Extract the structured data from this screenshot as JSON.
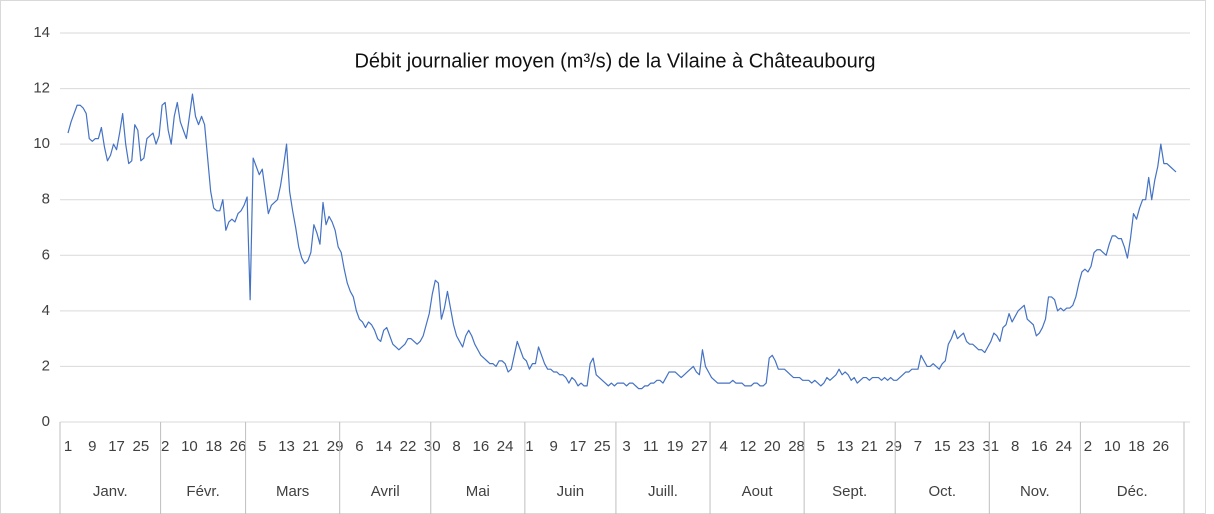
{
  "chart_data": {
    "type": "line",
    "title": "Débit journalier moyen (m³/s) de la Vilaine à Châteaubourg",
    "color": "#4472c4",
    "ylim": [
      0,
      14
    ],
    "yticks": [
      0,
      2,
      4,
      6,
      8,
      10,
      12,
      14
    ],
    "grid": true,
    "categories": [
      "1",
      null,
      null,
      null,
      null,
      null,
      null,
      null,
      "9",
      null,
      null,
      null,
      null,
      null,
      null,
      null,
      "17",
      null,
      null,
      null,
      null,
      null,
      null,
      null,
      "25",
      null,
      null,
      null,
      null,
      null,
      null,
      null,
      "2",
      null,
      null,
      null,
      null,
      null,
      null,
      null,
      "10",
      null,
      null,
      null,
      null,
      null,
      null,
      null,
      "18",
      null,
      null,
      null,
      null,
      null,
      null,
      null,
      "26",
      null,
      null,
      null,
      null,
      null,
      null,
      null,
      "5",
      null,
      null,
      null,
      null,
      null,
      null,
      null,
      "13",
      null,
      null,
      null,
      null,
      null,
      null,
      null,
      "21",
      null,
      null,
      null,
      null,
      null,
      null,
      null,
      "29",
      null,
      null,
      null,
      null,
      null,
      null,
      null,
      "6",
      null,
      null,
      null,
      null,
      null,
      null,
      null,
      "14",
      null,
      null,
      null,
      null,
      null,
      null,
      null,
      "22",
      null,
      null,
      null,
      null,
      null,
      null,
      null,
      "30",
      null,
      null,
      null,
      null,
      null,
      null,
      null,
      "8",
      null,
      null,
      null,
      null,
      null,
      null,
      null,
      "16",
      null,
      null,
      null,
      null,
      null,
      null,
      null,
      "24",
      null,
      null,
      null,
      null,
      null,
      null,
      null,
      "1",
      null,
      null,
      null,
      null,
      null,
      null,
      null,
      "9",
      null,
      null,
      null,
      null,
      null,
      null,
      null,
      "17",
      null,
      null,
      null,
      null,
      null,
      null,
      null,
      "25",
      null,
      null,
      null,
      null,
      null,
      null,
      null,
      "3",
      null,
      null,
      null,
      null,
      null,
      null,
      null,
      "11",
      null,
      null,
      null,
      null,
      null,
      null,
      null,
      "19",
      null,
      null,
      null,
      null,
      null,
      null,
      null,
      "27",
      null,
      null,
      null,
      null,
      null,
      null,
      null,
      "4",
      null,
      null,
      null,
      null,
      null,
      null,
      null,
      "12",
      null,
      null,
      null,
      null,
      null,
      null,
      null,
      "20",
      null,
      null,
      null,
      null,
      null,
      null,
      null,
      "28",
      null,
      null,
      null,
      null,
      null,
      null,
      null,
      "5",
      null,
      null,
      null,
      null,
      null,
      null,
      null,
      "13",
      null,
      null,
      null,
      null,
      null,
      null,
      null,
      "21",
      null,
      null,
      null,
      null,
      null,
      null,
      null,
      "29",
      null,
      null,
      null,
      null,
      null,
      null,
      null,
      "7",
      null,
      null,
      null,
      null,
      null,
      null,
      null,
      "15",
      null,
      null,
      null,
      null,
      null,
      null,
      null,
      "23",
      null,
      null,
      null,
      null,
      null,
      null,
      null,
      "31",
      null,
      null,
      null,
      null,
      null,
      null,
      null,
      "8",
      null,
      null,
      null,
      null,
      null,
      null,
      null,
      "16",
      null,
      null,
      null,
      null,
      null,
      null,
      null,
      "24",
      null,
      null,
      null,
      null,
      null,
      null,
      null,
      "2",
      null,
      null,
      null,
      null,
      null,
      null,
      null,
      "10",
      null,
      null,
      null,
      null,
      null,
      null,
      null,
      "18",
      null,
      null,
      null,
      null,
      null,
      null,
      null,
      "26",
      null,
      null,
      null,
      null,
      null
    ],
    "months": [
      "Janv.",
      null,
      null,
      null,
      null,
      null,
      null,
      null,
      null,
      null,
      null,
      null,
      null,
      null,
      null,
      null,
      null,
      null,
      null,
      null,
      null,
      null,
      null,
      null,
      null,
      null,
      null,
      null,
      null,
      null,
      null,
      "Févr.",
      null,
      null,
      null,
      null,
      null,
      null,
      null,
      null,
      null,
      null,
      null,
      null,
      null,
      null,
      null,
      null,
      null,
      null,
      null,
      null,
      null,
      null,
      null,
      null,
      null,
      null,
      null,
      "Mars",
      null,
      null,
      null,
      null,
      null,
      null,
      null,
      null,
      null,
      null,
      null,
      null,
      null,
      null,
      null,
      null,
      null,
      null,
      null,
      null,
      null,
      null,
      null,
      null,
      null,
      null,
      null,
      null,
      null,
      null,
      "Avril",
      null,
      null,
      null,
      null,
      null,
      null,
      null,
      null,
      null,
      null,
      null,
      null,
      null,
      null,
      null,
      null,
      null,
      null,
      null,
      null,
      null,
      null,
      null,
      null,
      null,
      null,
      null,
      null,
      null,
      "Mai",
      null,
      null,
      null,
      null,
      null,
      null,
      null,
      null,
      null,
      null,
      null,
      null,
      null,
      null,
      null,
      null,
      null,
      null,
      null,
      null,
      null,
      null,
      null,
      null,
      null,
      null,
      null,
      null,
      null,
      null,
      "Juin",
      null,
      null,
      null,
      null,
      null,
      null,
      null,
      null,
      null,
      null,
      null,
      null,
      null,
      null,
      null,
      null,
      null,
      null,
      null,
      null,
      null,
      null,
      null,
      null,
      null,
      null,
      null,
      null,
      null,
      "Juill.",
      null,
      null,
      null,
      null,
      null,
      null,
      null,
      null,
      null,
      null,
      null,
      null,
      null,
      null,
      null,
      null,
      null,
      null,
      null,
      null,
      null,
      null,
      null,
      null,
      null,
      null,
      null,
      null,
      null,
      null,
      "Aout",
      null,
      null,
      null,
      null,
      null,
      null,
      null,
      null,
      null,
      null,
      null,
      null,
      null,
      null,
      null,
      null,
      null,
      null,
      null,
      null,
      null,
      null,
      null,
      null,
      null,
      null,
      null,
      null,
      null,
      null,
      "Sept.",
      null,
      null,
      null,
      null,
      null,
      null,
      null,
      null,
      null,
      null,
      null,
      null,
      null,
      null,
      null,
      null,
      null,
      null,
      null,
      null,
      null,
      null,
      null,
      null,
      null,
      null,
      null,
      null,
      null,
      "Oct.",
      null,
      null,
      null,
      null,
      null,
      null,
      null,
      null,
      null,
      null,
      null,
      null,
      null,
      null,
      null,
      null,
      null,
      null,
      null,
      null,
      null,
      null,
      null,
      null,
      null,
      null,
      null,
      null,
      null,
      null,
      "Nov.",
      null,
      null,
      null,
      null,
      null,
      null,
      null,
      null,
      null,
      null,
      null,
      null,
      null,
      null,
      null,
      null,
      null,
      null,
      null,
      null,
      null,
      null,
      null,
      null,
      null,
      null,
      null,
      null,
      null,
      "Déc.",
      null,
      null,
      null,
      null,
      null,
      null,
      null,
      null,
      null,
      null,
      null,
      null,
      null,
      null,
      null,
      null,
      null,
      null,
      null,
      null,
      null,
      null,
      null,
      null,
      null,
      null,
      null,
      null,
      null,
      null
    ],
    "values": [
      10.4,
      10.8,
      11.1,
      11.4,
      11.4,
      11.3,
      11.1,
      10.2,
      10.1,
      10.2,
      10.2,
      10.6,
      9.9,
      9.4,
      9.6,
      10.0,
      9.8,
      10.4,
      11.1,
      10.0,
      9.3,
      9.4,
      10.7,
      10.5,
      9.4,
      9.5,
      10.2,
      10.3,
      10.4,
      10.0,
      10.3,
      11.4,
      11.5,
      10.5,
      10.0,
      11.0,
      11.5,
      10.8,
      10.5,
      10.2,
      11.0,
      11.8,
      11.0,
      10.7,
      11.0,
      10.7,
      9.5,
      8.3,
      7.7,
      7.6,
      7.6,
      8.0,
      6.9,
      7.2,
      7.3,
      7.2,
      7.5,
      7.6,
      7.8,
      8.1,
      4.4,
      9.5,
      9.2,
      8.9,
      9.1,
      8.3,
      7.5,
      7.8,
      7.9,
      8.0,
      8.5,
      9.2,
      10.0,
      8.3,
      7.6,
      7.0,
      6.3,
      5.9,
      5.7,
      5.8,
      6.1,
      7.1,
      6.8,
      6.4,
      7.9,
      7.1,
      7.4,
      7.2,
      6.9,
      6.3,
      6.1,
      5.5,
      5.0,
      4.7,
      4.5,
      4.0,
      3.7,
      3.6,
      3.4,
      3.6,
      3.5,
      3.3,
      3.0,
      2.9,
      3.3,
      3.4,
      3.1,
      2.8,
      2.7,
      2.6,
      2.7,
      2.8,
      3.0,
      3.0,
      2.9,
      2.8,
      2.9,
      3.1,
      3.5,
      3.9,
      4.6,
      5.1,
      5.0,
      3.7,
      4.1,
      4.7,
      4.1,
      3.5,
      3.1,
      2.9,
      2.7,
      3.1,
      3.3,
      3.1,
      2.8,
      2.6,
      2.4,
      2.3,
      2.2,
      2.1,
      2.1,
      2.0,
      2.2,
      2.2,
      2.1,
      1.8,
      1.9,
      2.4,
      2.9,
      2.6,
      2.3,
      2.2,
      1.9,
      2.1,
      2.1,
      2.7,
      2.4,
      2.1,
      1.9,
      1.9,
      1.8,
      1.8,
      1.7,
      1.7,
      1.6,
      1.4,
      1.6,
      1.5,
      1.3,
      1.4,
      1.3,
      1.3,
      2.1,
      2.3,
      1.7,
      1.6,
      1.5,
      1.4,
      1.3,
      1.4,
      1.3,
      1.4,
      1.4,
      1.4,
      1.3,
      1.4,
      1.4,
      1.3,
      1.2,
      1.2,
      1.3,
      1.3,
      1.4,
      1.4,
      1.5,
      1.5,
      1.4,
      1.6,
      1.8,
      1.8,
      1.8,
      1.7,
      1.6,
      1.7,
      1.8,
      1.9,
      2.0,
      1.8,
      1.7,
      2.6,
      2.0,
      1.8,
      1.6,
      1.5,
      1.4,
      1.4,
      1.4,
      1.4,
      1.4,
      1.5,
      1.4,
      1.4,
      1.4,
      1.3,
      1.3,
      1.3,
      1.4,
      1.4,
      1.3,
      1.3,
      1.4,
      2.3,
      2.4,
      2.2,
      1.9,
      1.9,
      1.9,
      1.8,
      1.7,
      1.6,
      1.6,
      1.6,
      1.5,
      1.5,
      1.5,
      1.4,
      1.5,
      1.4,
      1.3,
      1.4,
      1.6,
      1.5,
      1.6,
      1.7,
      1.9,
      1.7,
      1.8,
      1.7,
      1.5,
      1.6,
      1.4,
      1.5,
      1.6,
      1.6,
      1.5,
      1.6,
      1.6,
      1.6,
      1.5,
      1.6,
      1.5,
      1.6,
      1.5,
      1.5,
      1.6,
      1.7,
      1.8,
      1.8,
      1.9,
      1.9,
      1.9,
      2.4,
      2.2,
      2.0,
      2.0,
      2.1,
      2.0,
      1.9,
      2.1,
      2.2,
      2.8,
      3.0,
      3.3,
      3.0,
      3.1,
      3.2,
      2.9,
      2.8,
      2.8,
      2.7,
      2.6,
      2.6,
      2.5,
      2.7,
      2.9,
      3.2,
      3.1,
      2.9,
      3.4,
      3.5,
      3.9,
      3.6,
      3.8,
      4.0,
      4.1,
      4.2,
      3.7,
      3.6,
      3.5,
      3.1,
      3.2,
      3.4,
      3.7,
      4.5,
      4.5,
      4.4,
      4.0,
      4.1,
      4.0,
      4.1,
      4.1,
      4.2,
      4.5,
      5.0,
      5.4,
      5.5,
      5.4,
      5.6,
      6.1,
      6.2,
      6.2,
      6.1,
      6.0,
      6.4,
      6.7,
      6.7,
      6.6,
      6.6,
      6.3,
      5.9,
      6.6,
      7.5,
      7.3,
      7.7,
      8.0,
      8.0,
      8.8,
      8.0,
      8.7,
      9.2,
      10.0,
      9.3,
      9.3,
      9.2,
      9.1,
      9.0
    ]
  }
}
